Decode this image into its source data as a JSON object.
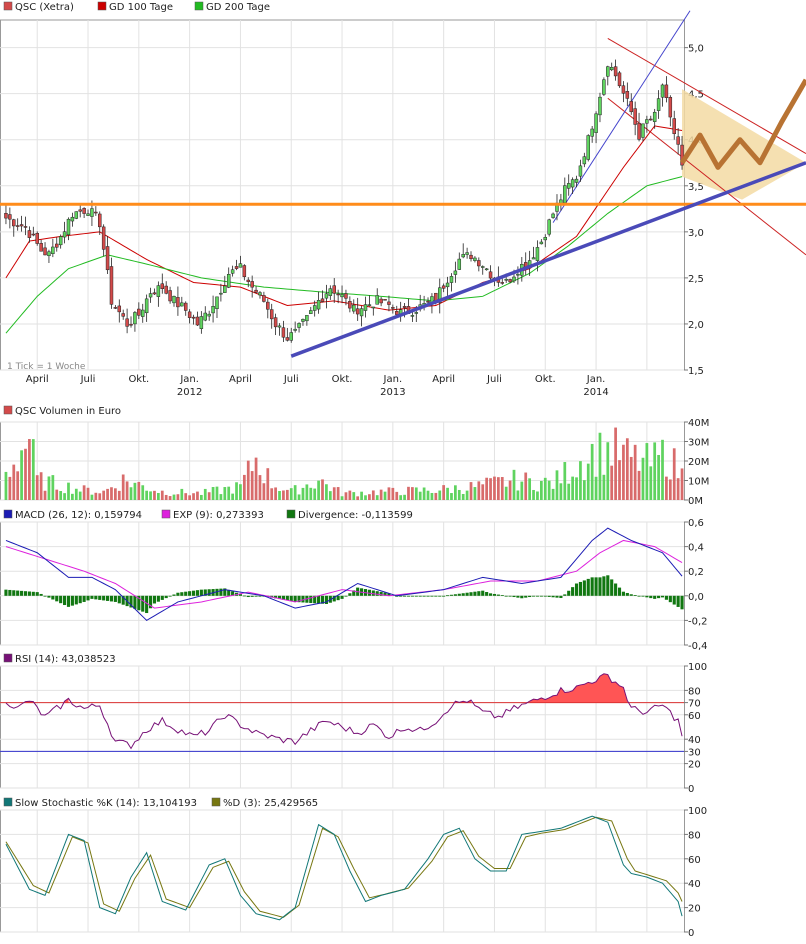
{
  "colors": {
    "up": "#5fd35f",
    "down": "#d34a4a",
    "ma100": "#cc0000",
    "ma200": "#22bb22",
    "support": "#4a4ab8",
    "resistance": "#ff8c1a",
    "channel": "#cc2222",
    "macd": "#1c1cb4",
    "signal": "#dd22dd",
    "divergence": "#117711",
    "rsi": "#771177",
    "rsi_fill": "#ff5555",
    "k": "#117777",
    "d": "#777711",
    "forecast": "#b87333",
    "zone": "#f3dba3"
  },
  "price_panel": {
    "legend": [
      {
        "label": "QSC (Xetra)",
        "color": "#d34a4a",
        "icon": "candle-swatch-icon"
      },
      {
        "label": "GD 100 Tage",
        "color": "#cc0000",
        "icon": "line-swatch-icon"
      },
      {
        "label": "GD 200 Tage",
        "color": "#22bb22",
        "icon": "line-swatch-icon"
      }
    ],
    "note": "1 Tick = 1 Woche",
    "month_ticks": [
      "April",
      "Juli",
      "Okt.",
      "Jan.",
      "April",
      "Juli",
      "Okt.",
      "Jan.",
      "April",
      "Juli",
      "Okt.",
      "Jan."
    ],
    "year_ticks": [
      "2012",
      "2013",
      "2014"
    ],
    "y_ticks": [
      "5,0",
      "4,5",
      "4,0",
      "3,5",
      "3,0",
      "2,5",
      "2,0",
      "1,5"
    ]
  },
  "volume_panel": {
    "legend": "QSC Volumen in Euro",
    "y_ticks": [
      "40M",
      "30M",
      "20M",
      "10M",
      "0M"
    ]
  },
  "macd_panel": {
    "legend": [
      {
        "label": "MACD (26, 12): 0,159794",
        "color": "#1c1cb4"
      },
      {
        "label": "EXP (9): 0,273393",
        "color": "#dd22dd"
      },
      {
        "label": "Divergence: -0,113599",
        "color": "#117711"
      }
    ],
    "y_ticks": [
      "0,6",
      "0,4",
      "0,2",
      "0,0",
      "-0,2",
      "-0,4"
    ]
  },
  "rsi_panel": {
    "legend": "RSI (14): 43,038523",
    "y_ticks": [
      "100",
      "80",
      "70",
      "60",
      "40",
      "30",
      "20",
      "0"
    ]
  },
  "stoch_panel": {
    "legend": [
      {
        "label": "Slow Stochastic %K (14): 13,104193",
        "color": "#117777"
      },
      {
        "label": "%D (3): 25,429565",
        "color": "#777711"
      }
    ],
    "y_ticks": [
      "100",
      "80",
      "60",
      "40",
      "20",
      "0"
    ]
  },
  "chart_data": {
    "type": "candlestick",
    "title": "QSC (Xetra)",
    "interval": "weekly",
    "x_range": [
      "2011-03",
      "2014-02"
    ],
    "price_ylim": [
      1.5,
      5.3
    ],
    "close_anchors": [
      [
        0,
        3.15
      ],
      [
        5,
        3.05
      ],
      [
        9,
        2.8
      ],
      [
        11,
        2.75
      ],
      [
        14,
        2.95
      ],
      [
        17,
        3.2
      ],
      [
        21,
        3.25
      ],
      [
        24,
        3.1
      ],
      [
        27,
        2.25
      ],
      [
        31,
        2.0
      ],
      [
        34,
        2.1
      ],
      [
        37,
        2.35
      ],
      [
        40,
        2.4
      ],
      [
        43,
        2.25
      ],
      [
        46,
        2.15
      ],
      [
        49,
        2.0
      ],
      [
        52,
        2.15
      ],
      [
        54,
        2.3
      ],
      [
        57,
        2.55
      ],
      [
        60,
        2.6
      ],
      [
        63,
        2.4
      ],
      [
        66,
        2.25
      ],
      [
        69,
        2.0
      ],
      [
        72,
        1.85
      ],
      [
        74,
        1.9
      ],
      [
        77,
        2.05
      ],
      [
        80,
        2.25
      ],
      [
        83,
        2.4
      ],
      [
        86,
        2.3
      ],
      [
        89,
        2.15
      ],
      [
        92,
        2.2
      ],
      [
        95,
        2.25
      ],
      [
        98,
        2.2
      ],
      [
        101,
        2.12
      ],
      [
        104,
        2.15
      ],
      [
        107,
        2.2
      ],
      [
        110,
        2.28
      ],
      [
        113,
        2.5
      ],
      [
        116,
        2.7
      ],
      [
        119,
        2.75
      ],
      [
        122,
        2.65
      ],
      [
        125,
        2.5
      ],
      [
        128,
        2.45
      ],
      [
        131,
        2.6
      ],
      [
        134,
        2.7
      ],
      [
        137,
        2.9
      ],
      [
        140,
        3.2
      ],
      [
        143,
        3.45
      ],
      [
        146,
        3.6
      ],
      [
        149,
        4.0
      ],
      [
        152,
        4.5
      ],
      [
        154,
        4.85
      ],
      [
        156,
        4.7
      ],
      [
        158,
        4.5
      ],
      [
        160,
        4.3
      ],
      [
        162,
        4.05
      ],
      [
        164,
        4.2
      ],
      [
        166,
        4.25
      ],
      [
        168,
        4.6
      ],
      [
        170,
        4.2
      ],
      [
        172,
        3.95
      ],
      [
        173,
        3.7
      ]
    ],
    "ma100_anchors": [
      [
        0,
        2.5
      ],
      [
        6,
        2.9
      ],
      [
        14,
        2.95
      ],
      [
        24,
        3.0
      ],
      [
        36,
        2.7
      ],
      [
        48,
        2.45
      ],
      [
        60,
        2.4
      ],
      [
        72,
        2.2
      ],
      [
        84,
        2.25
      ],
      [
        98,
        2.15
      ],
      [
        110,
        2.2
      ],
      [
        122,
        2.45
      ],
      [
        134,
        2.6
      ],
      [
        146,
        2.95
      ],
      [
        158,
        3.7
      ],
      [
        166,
        4.15
      ],
      [
        173,
        4.1
      ]
    ],
    "ma200_anchors": [
      [
        0,
        1.9
      ],
      [
        8,
        2.3
      ],
      [
        16,
        2.6
      ],
      [
        26,
        2.75
      ],
      [
        36,
        2.65
      ],
      [
        50,
        2.5
      ],
      [
        66,
        2.4
      ],
      [
        80,
        2.35
      ],
      [
        96,
        2.3
      ],
      [
        110,
        2.25
      ],
      [
        122,
        2.3
      ],
      [
        134,
        2.55
      ],
      [
        144,
        2.85
      ],
      [
        154,
        3.2
      ],
      [
        164,
        3.5
      ],
      [
        173,
        3.6
      ]
    ],
    "volume_millions_anchors": [
      [
        0,
        15
      ],
      [
        6,
        38
      ],
      [
        8,
        12
      ],
      [
        16,
        8
      ],
      [
        20,
        6
      ],
      [
        25,
        5
      ],
      [
        30,
        12
      ],
      [
        40,
        5
      ],
      [
        50,
        4
      ],
      [
        60,
        8
      ],
      [
        64,
        25
      ],
      [
        68,
        10
      ],
      [
        73,
        5
      ],
      [
        80,
        12
      ],
      [
        86,
        4
      ],
      [
        96,
        5
      ],
      [
        110,
        6
      ],
      [
        120,
        8
      ],
      [
        130,
        12
      ],
      [
        140,
        10
      ],
      [
        145,
        20
      ],
      [
        150,
        28
      ],
      [
        155,
        30
      ],
      [
        160,
        25
      ],
      [
        165,
        22
      ],
      [
        169,
        28
      ],
      [
        172,
        18
      ],
      [
        173,
        15
      ]
    ],
    "macd_anchors": [
      [
        0,
        0.45
      ],
      [
        8,
        0.35
      ],
      [
        16,
        0.15
      ],
      [
        22,
        0.15
      ],
      [
        28,
        0.05
      ],
      [
        36,
        -0.2
      ],
      [
        44,
        -0.05
      ],
      [
        56,
        0.05
      ],
      [
        66,
        0.0
      ],
      [
        74,
        -0.1
      ],
      [
        82,
        -0.05
      ],
      [
        90,
        0.1
      ],
      [
        100,
        0.0
      ],
      [
        112,
        0.05
      ],
      [
        122,
        0.15
      ],
      [
        132,
        0.1
      ],
      [
        142,
        0.15
      ],
      [
        150,
        0.45
      ],
      [
        154,
        0.55
      ],
      [
        160,
        0.45
      ],
      [
        168,
        0.35
      ],
      [
        173,
        0.16
      ]
    ],
    "signal_anchors": [
      [
        0,
        0.4
      ],
      [
        10,
        0.3
      ],
      [
        20,
        0.2
      ],
      [
        28,
        0.1
      ],
      [
        38,
        -0.1
      ],
      [
        50,
        -0.05
      ],
      [
        62,
        0.03
      ],
      [
        74,
        -0.05
      ],
      [
        86,
        0.05
      ],
      [
        98,
        0.0
      ],
      [
        112,
        0.05
      ],
      [
        124,
        0.12
      ],
      [
        136,
        0.12
      ],
      [
        146,
        0.2
      ],
      [
        152,
        0.35
      ],
      [
        158,
        0.45
      ],
      [
        166,
        0.4
      ],
      [
        173,
        0.27
      ]
    ],
    "rsi_anchors": [
      [
        0,
        72
      ],
      [
        3,
        65
      ],
      [
        6,
        72
      ],
      [
        10,
        58
      ],
      [
        16,
        72
      ],
      [
        20,
        65
      ],
      [
        24,
        68
      ],
      [
        28,
        38
      ],
      [
        32,
        35
      ],
      [
        36,
        48
      ],
      [
        40,
        55
      ],
      [
        44,
        48
      ],
      [
        48,
        42
      ],
      [
        52,
        47
      ],
      [
        56,
        60
      ],
      [
        60,
        52
      ],
      [
        64,
        45
      ],
      [
        70,
        40
      ],
      [
        74,
        38
      ],
      [
        78,
        47
      ],
      [
        82,
        55
      ],
      [
        86,
        50
      ],
      [
        90,
        45
      ],
      [
        94,
        52
      ],
      [
        98,
        42
      ],
      [
        102,
        50
      ],
      [
        106,
        47
      ],
      [
        110,
        55
      ],
      [
        114,
        68
      ],
      [
        118,
        72
      ],
      [
        122,
        62
      ],
      [
        126,
        58
      ],
      [
        130,
        65
      ],
      [
        134,
        70
      ],
      [
        138,
        75
      ],
      [
        142,
        80
      ],
      [
        146,
        82
      ],
      [
        150,
        88
      ],
      [
        154,
        92
      ],
      [
        158,
        82
      ],
      [
        160,
        65
      ],
      [
        164,
        62
      ],
      [
        168,
        68
      ],
      [
        172,
        55
      ],
      [
        173,
        43
      ]
    ],
    "stoch_k_anchors": [
      [
        0,
        72
      ],
      [
        6,
        35
      ],
      [
        10,
        30
      ],
      [
        16,
        80
      ],
      [
        20,
        75
      ],
      [
        24,
        20
      ],
      [
        28,
        15
      ],
      [
        32,
        45
      ],
      [
        36,
        65
      ],
      [
        40,
        25
      ],
      [
        46,
        18
      ],
      [
        52,
        55
      ],
      [
        56,
        60
      ],
      [
        60,
        30
      ],
      [
        64,
        15
      ],
      [
        70,
        10
      ],
      [
        74,
        20
      ],
      [
        80,
        88
      ],
      [
        84,
        80
      ],
      [
        88,
        50
      ],
      [
        92,
        25
      ],
      [
        96,
        30
      ],
      [
        102,
        35
      ],
      [
        108,
        60
      ],
      [
        112,
        80
      ],
      [
        116,
        85
      ],
      [
        120,
        60
      ],
      [
        124,
        50
      ],
      [
        128,
        50
      ],
      [
        132,
        80
      ],
      [
        136,
        82
      ],
      [
        142,
        85
      ],
      [
        146,
        90
      ],
      [
        150,
        95
      ],
      [
        154,
        90
      ],
      [
        158,
        55
      ],
      [
        160,
        48
      ],
      [
        164,
        45
      ],
      [
        168,
        40
      ],
      [
        172,
        25
      ],
      [
        173,
        13
      ]
    ],
    "stoch_d_anchors": [
      [
        0,
        74
      ],
      [
        7,
        38
      ],
      [
        11,
        32
      ],
      [
        17,
        78
      ],
      [
        21,
        73
      ],
      [
        25,
        23
      ],
      [
        29,
        17
      ],
      [
        33,
        44
      ],
      [
        37,
        63
      ],
      [
        41,
        27
      ],
      [
        47,
        20
      ],
      [
        53,
        53
      ],
      [
        57,
        58
      ],
      [
        61,
        33
      ],
      [
        65,
        17
      ],
      [
        71,
        12
      ],
      [
        75,
        22
      ],
      [
        81,
        85
      ],
      [
        85,
        78
      ],
      [
        89,
        52
      ],
      [
        93,
        28
      ],
      [
        97,
        31
      ],
      [
        103,
        36
      ],
      [
        109,
        58
      ],
      [
        113,
        78
      ],
      [
        117,
        83
      ],
      [
        121,
        62
      ],
      [
        125,
        52
      ],
      [
        129,
        52
      ],
      [
        133,
        78
      ],
      [
        137,
        81
      ],
      [
        143,
        84
      ],
      [
        147,
        89
      ],
      [
        151,
        94
      ],
      [
        155,
        91
      ],
      [
        159,
        60
      ],
      [
        161,
        50
      ],
      [
        165,
        46
      ],
      [
        169,
        42
      ],
      [
        172,
        32
      ],
      [
        173,
        25
      ]
    ]
  }
}
